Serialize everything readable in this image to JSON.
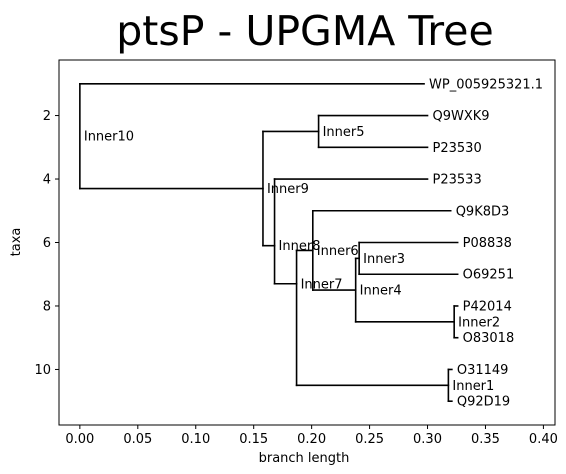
{
  "chart_data": {
    "type": "dendrogram",
    "title": "ptsP - UPGMA Tree",
    "xlabel": "branch length",
    "ylabel": "taxa",
    "xlim": [
      -0.018,
      0.41
    ],
    "ylim": [
      11.75,
      0.25
    ],
    "x_ticks": [
      "0.00",
      "0.05",
      "0.10",
      "0.15",
      "0.20",
      "0.25",
      "0.30",
      "0.35",
      "0.40"
    ],
    "x_tick_values": [
      0.0,
      0.05,
      0.1,
      0.15,
      0.2,
      0.25,
      0.3,
      0.35,
      0.4
    ],
    "y_ticks": [
      "2",
      "4",
      "6",
      "8",
      "10"
    ],
    "y_tick_values": [
      2,
      4,
      6,
      8,
      10
    ],
    "grid": false,
    "legend": "none",
    "leaves": [
      {
        "name": "WP_005925321.1",
        "x": 0.297,
        "y": 1
      },
      {
        "name": "Q9WXK9",
        "x": 0.3,
        "y": 2
      },
      {
        "name": "P23530",
        "x": 0.3,
        "y": 3
      },
      {
        "name": "P23533",
        "x": 0.3,
        "y": 4
      },
      {
        "name": "Q9K8D3",
        "x": 0.32,
        "y": 5
      },
      {
        "name": "P08838",
        "x": 0.326,
        "y": 6
      },
      {
        "name": "O69251",
        "x": 0.326,
        "y": 7
      },
      {
        "name": "P42014",
        "x": 0.326,
        "y": 8
      },
      {
        "name": "O83018",
        "x": 0.326,
        "y": 9
      },
      {
        "name": "O31149",
        "x": 0.321,
        "y": 10
      },
      {
        "name": "Q92D19",
        "x": 0.321,
        "y": 11
      }
    ],
    "internal_nodes": [
      {
        "name": "Inner10",
        "x": 0.0,
        "y": 2.65
      },
      {
        "name": "Inner9",
        "x": 0.158,
        "y": 4.3
      },
      {
        "name": "Inner5",
        "x": 0.206,
        "y": 2.5
      },
      {
        "name": "Inner8",
        "x": 0.168,
        "y": 6.1
      },
      {
        "name": "Inner7",
        "x": 0.187,
        "y": 7.3
      },
      {
        "name": "Inner6",
        "x": 0.201,
        "y": 6.25
      },
      {
        "name": "Inner4",
        "x": 0.238,
        "y": 7.5
      },
      {
        "name": "Inner3",
        "x": 0.241,
        "y": 6.5
      },
      {
        "name": "Inner2",
        "x": 0.323,
        "y": 8.5
      },
      {
        "name": "Inner1",
        "x": 0.318,
        "y": 10.5
      }
    ],
    "edges": [
      [
        "Inner10",
        "WP_005925321.1"
      ],
      [
        "Inner10",
        "Inner9"
      ],
      [
        "Inner9",
        "Inner5"
      ],
      [
        "Inner9",
        "Inner8"
      ],
      [
        "Inner5",
        "Q9WXK9"
      ],
      [
        "Inner5",
        "P23530"
      ],
      [
        "Inner8",
        "P23533"
      ],
      [
        "Inner8",
        "Inner7"
      ],
      [
        "Inner7",
        "Inner6"
      ],
      [
        "Inner7",
        "Inner1"
      ],
      [
        "Inner6",
        "Q9K8D3"
      ],
      [
        "Inner6",
        "Inner4"
      ],
      [
        "Inner4",
        "Inner3"
      ],
      [
        "Inner4",
        "Inner2"
      ],
      [
        "Inner3",
        "P08838"
      ],
      [
        "Inner3",
        "O69251"
      ],
      [
        "Inner2",
        "P42014"
      ],
      [
        "Inner2",
        "O83018"
      ],
      [
        "Inner1",
        "O31149"
      ],
      [
        "Inner1",
        "Q92D19"
      ]
    ]
  }
}
